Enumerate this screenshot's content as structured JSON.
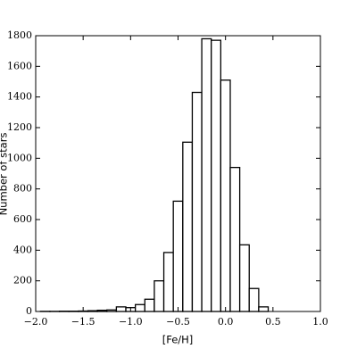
{
  "chart_data": {
    "type": "histogram",
    "xlabel": "[Fe/H]",
    "ylabel": "Number of stars",
    "bins": [
      -1.95,
      -1.85,
      -1.75,
      -1.65,
      -1.55,
      -1.45,
      -1.35,
      -1.25,
      -1.15,
      -1.05,
      -0.95,
      -0.85,
      -0.75,
      -0.65,
      -0.55,
      -0.45,
      -0.35,
      -0.25,
      -0.15,
      -0.05,
      0.05,
      0.15,
      0.25,
      0.35,
      0.45
    ],
    "values": [
      1,
      1,
      2,
      2,
      3,
      5,
      8,
      10,
      30,
      25,
      45,
      80,
      200,
      385,
      720,
      1105,
      1430,
      1780,
      1770,
      1510,
      940,
      435,
      150,
      30
    ],
    "color": "#ffffff",
    "edgecolor": "#000000",
    "xlim": [
      -2.0,
      1.0
    ],
    "xticks": [
      {
        "value": -2.0,
        "label": "−2.0"
      },
      {
        "value": -1.5,
        "label": "−1.5"
      },
      {
        "value": -1.0,
        "label": "−1.0"
      },
      {
        "value": -0.5,
        "label": "−0.5"
      },
      {
        "value": 0.0,
        "label": "0.0"
      },
      0.5,
      {
        "value": 1.0,
        "label": "1.0"
      }
    ],
    "ylim": [
      0,
      1800
    ],
    "yticks": [
      0,
      200,
      400,
      600,
      800,
      1000,
      1200,
      1400,
      1600,
      1800
    ],
    "grid": false
  }
}
